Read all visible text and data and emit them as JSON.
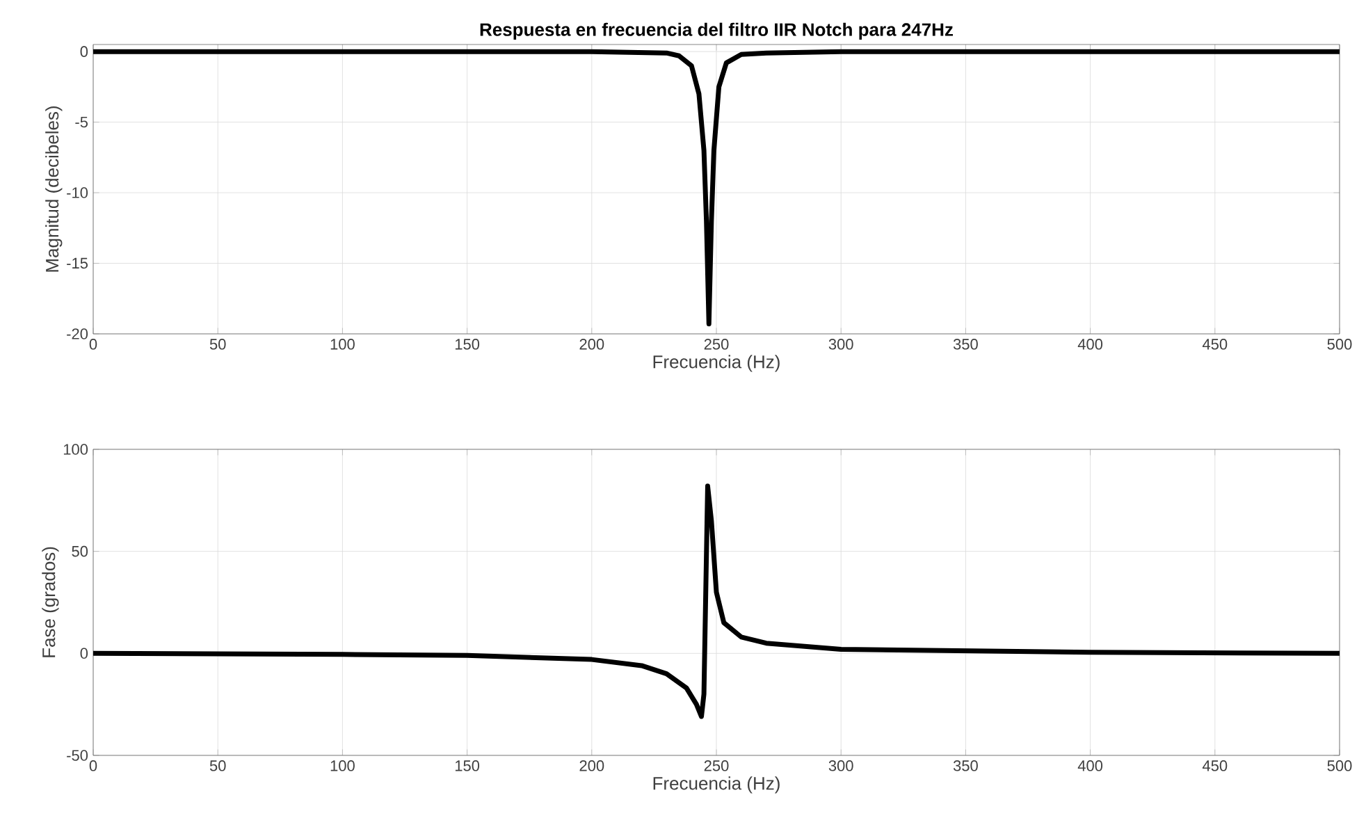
{
  "chart_data": [
    {
      "type": "line",
      "title": "Respuesta en frecuencia del filtro IIR Notch para 247Hz",
      "xlabel": "Frecuencia (Hz)",
      "ylabel": "Magnitud (decibeles)",
      "xlim": [
        0,
        500
      ],
      "ylim": [
        -20,
        0.5
      ],
      "xticks": [
        0,
        50,
        100,
        150,
        200,
        250,
        300,
        350,
        400,
        450,
        500
      ],
      "yticks": [
        -20,
        -15,
        -10,
        -5,
        0
      ],
      "grid": true,
      "series": [
        {
          "color": "#000000",
          "x": [
            0,
            100,
            200,
            230,
            235,
            240,
            243,
            245,
            246,
            247,
            248,
            249,
            251,
            254,
            260,
            270,
            300,
            400,
            500
          ],
          "values": [
            0,
            0,
            0,
            -0.1,
            -0.3,
            -1,
            -3,
            -7,
            -12,
            -19.3,
            -12,
            -7,
            -2.5,
            -0.8,
            -0.2,
            -0.1,
            0,
            0,
            0
          ]
        }
      ]
    },
    {
      "type": "line",
      "xlabel": "Frecuencia (Hz)",
      "ylabel": "Fase (grados)",
      "xlim": [
        0,
        500
      ],
      "ylim": [
        -50,
        100
      ],
      "xticks": [
        0,
        50,
        100,
        150,
        200,
        250,
        300,
        350,
        400,
        450,
        500
      ],
      "yticks": [
        -50,
        0,
        50,
        100
      ],
      "grid": true,
      "series": [
        {
          "color": "#000000",
          "x": [
            0,
            100,
            150,
            200,
            220,
            230,
            238,
            242,
            244,
            245,
            246.5,
            248,
            250,
            253,
            260,
            270,
            300,
            400,
            500
          ],
          "values": [
            0,
            -0.5,
            -1,
            -3,
            -6,
            -10,
            -17,
            -25,
            -31,
            -20,
            82,
            65,
            30,
            15,
            8,
            5,
            2,
            0.5,
            0
          ]
        }
      ]
    }
  ]
}
